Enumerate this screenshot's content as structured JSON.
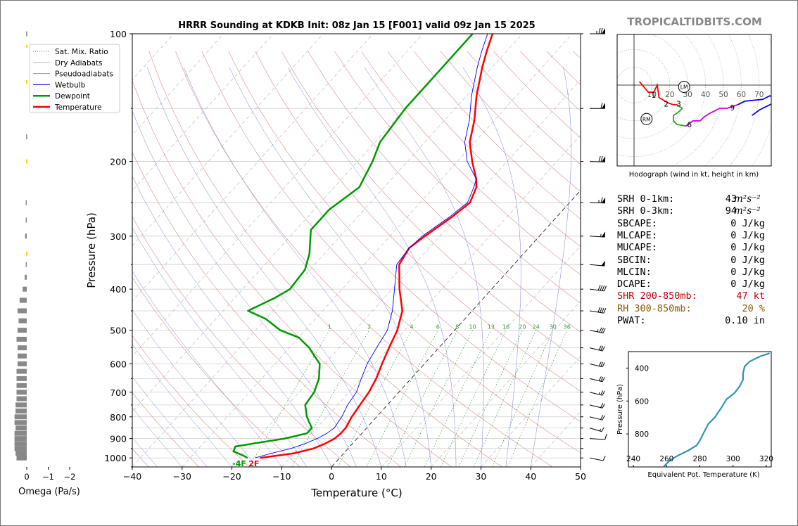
{
  "chart_data": [
    {
      "type": "skew-t",
      "title": "HRRR Sounding at KDKB Init: 08z Jan 15 [F001] valid 09z Jan 15 2025",
      "xlabel": "Temperature (°C)",
      "ylabel": "Pressure (hPa)",
      "xlim": [
        -40,
        50
      ],
      "ylim": [
        1050,
        100
      ],
      "y_scale": "log",
      "x_ticks": [
        "−40",
        "−30",
        "−20",
        "−10",
        "0",
        "10",
        "20",
        "30",
        "40",
        "50"
      ],
      "y_ticks": [
        "100",
        "200",
        "300",
        "400",
        "500",
        "600",
        "700",
        "800",
        "900",
        "1000"
      ],
      "grid": true,
      "legend_position": "top-left",
      "legend": [
        {
          "label": "Sat. Mix. Ratio",
          "color": "#2ca02c",
          "style": "dotted"
        },
        {
          "label": "Dry Adiabats",
          "color": "#bbbbbb",
          "style": "solid"
        },
        {
          "label": "Pseudoadiabats",
          "color": "#999999",
          "style": "solid"
        },
        {
          "label": "Wetbulb",
          "color": "#0000ff",
          "style": "solid"
        },
        {
          "label": "Dewpoint",
          "color": "#009900",
          "style": "solid"
        },
        {
          "label": "Temperature",
          "color": "#ff0000",
          "style": "solid"
        }
      ],
      "mixing_ratio_labels": [
        "1",
        "2",
        "4",
        "6",
        "8",
        "10",
        "13",
        "16",
        "20",
        "24",
        "30",
        "36"
      ],
      "surface_labels": {
        "dewpoint": "-4F",
        "temperature": "2F"
      },
      "series": [
        {
          "name": "Temperature",
          "points": [
            [
              1000,
              -16
            ],
            [
              975,
              -10
            ],
            [
              950,
              -7
            ],
            [
              925,
              -5.5
            ],
            [
              900,
              -4.5
            ],
            [
              875,
              -4.2
            ],
            [
              850,
              -4.2
            ],
            [
              800,
              -5
            ],
            [
              750,
              -5.5
            ],
            [
              700,
              -6
            ],
            [
              650,
              -7
            ],
            [
              600,
              -8.5
            ],
            [
              550,
              -10
            ],
            [
              500,
              -11.5
            ],
            [
              450,
              -14
            ],
            [
              400,
              -18.5
            ],
            [
              350,
              -23
            ],
            [
              320,
              -24
            ],
            [
              300,
              -23
            ],
            [
              270,
              -21
            ],
            [
              250,
              -20
            ],
            [
              230,
              -21.5
            ],
            [
              220,
              -23
            ],
            [
              200,
              -27
            ],
            [
              180,
              -31
            ],
            [
              160,
              -34
            ],
            [
              140,
              -38
            ],
            [
              120,
              -42
            ],
            [
              110,
              -44
            ],
            [
              100,
              -46
            ]
          ]
        },
        {
          "name": "Wetbulb",
          "points": [
            [
              1000,
              -17
            ],
            [
              975,
              -14.5
            ],
            [
              950,
              -11.5
            ],
            [
              925,
              -9.5
            ],
            [
              900,
              -8
            ],
            [
              875,
              -7
            ],
            [
              850,
              -6.5
            ],
            [
              800,
              -7
            ],
            [
              750,
              -8
            ],
            [
              700,
              -8.5
            ],
            [
              650,
              -10
            ],
            [
              600,
              -11.5
            ],
            [
              550,
              -12.5
            ],
            [
              500,
              -13.5
            ],
            [
              450,
              -16
            ],
            [
              400,
              -19.5
            ],
            [
              350,
              -23.5
            ],
            [
              320,
              -24
            ],
            [
              300,
              -23.5
            ],
            [
              270,
              -21.5
            ],
            [
              250,
              -20.5
            ],
            [
              230,
              -22
            ],
            [
              220,
              -23
            ],
            [
              200,
              -28
            ],
            [
              180,
              -32
            ],
            [
              160,
              -35
            ],
            [
              140,
              -39
            ],
            [
              120,
              -43
            ],
            [
              110,
              -45
            ],
            [
              100,
              -47
            ]
          ]
        },
        {
          "name": "Dewpoint",
          "points": [
            [
              1000,
              -18.5
            ],
            [
              985,
              -20
            ],
            [
              965,
              -22.5
            ],
            [
              940,
              -23
            ],
            [
              925,
              -20
            ],
            [
              900,
              -14.5
            ],
            [
              875,
              -11
            ],
            [
              850,
              -11
            ],
            [
              800,
              -14
            ],
            [
              750,
              -16.5
            ],
            [
              700,
              -17
            ],
            [
              650,
              -18.5
            ],
            [
              600,
              -21
            ],
            [
              570,
              -24
            ],
            [
              550,
              -26
            ],
            [
              520,
              -30
            ],
            [
              500,
              -35
            ],
            [
              470,
              -40
            ],
            [
              450,
              -45
            ],
            [
              420,
              -42
            ],
            [
              400,
              -40.5
            ],
            [
              360,
              -41
            ],
            [
              330,
              -43
            ],
            [
              290,
              -47
            ],
            [
              260,
              -47
            ],
            [
              230,
              -45
            ],
            [
              200,
              -47
            ],
            [
              180,
              -49
            ],
            [
              150,
              -50
            ],
            [
              120,
              -50
            ],
            [
              100,
              -50
            ]
          ]
        }
      ]
    },
    {
      "type": "line",
      "title": "",
      "xlabel": "",
      "ylabel": "",
      "caption": "Hodograph (wind in kt, height in km)",
      "xlim": [
        -25,
        85
      ],
      "ylim": [
        -45,
        30
      ],
      "ring_labels": [
        "10",
        "20",
        "30",
        "40",
        "50",
        "60",
        "70"
      ],
      "markers": [
        {
          "label": "LM",
          "x": 28,
          "y": -1
        },
        {
          "label": "RM",
          "x": 7,
          "y": -19
        }
      ],
      "height_labels": [
        "1",
        "2",
        "3",
        "6",
        "9"
      ],
      "segments": [
        {
          "color": "#ff0000",
          "points": [
            [
              3,
              2
            ],
            [
              8,
              -4
            ],
            [
              11,
              -4
            ],
            [
              13,
              0
            ],
            [
              14,
              -7
            ],
            [
              19,
              -10
            ],
            [
              22,
              -11
            ],
            [
              24,
              -11
            ]
          ]
        },
        {
          "color": "#2ca02c",
          "points": [
            [
              24,
              -11
            ],
            [
              27,
              -13
            ],
            [
              25,
              -15
            ],
            [
              22,
              -17
            ],
            [
              22,
              -20
            ],
            [
              24,
              -22
            ],
            [
              29,
              -23
            ]
          ]
        },
        {
          "color": "#cc00cc",
          "points": [
            [
              29,
              -23
            ],
            [
              33,
              -20
            ],
            [
              37,
              -20
            ],
            [
              39,
              -18
            ],
            [
              42,
              -16
            ],
            [
              48,
              -13
            ],
            [
              52,
              -13
            ],
            [
              58,
              -11
            ]
          ]
        },
        {
          "color": "#0000ff",
          "points": [
            [
              58,
              -11
            ],
            [
              62,
              -9
            ],
            [
              72,
              -8
            ],
            [
              76,
              -6
            ],
            [
              80,
              -8
            ],
            [
              78,
              -10
            ],
            [
              72,
              -13
            ],
            [
              70,
              -14
            ],
            [
              66,
              -17
            ]
          ]
        }
      ]
    },
    {
      "type": "line",
      "xlabel": "Equivalent Pot. Temperature (K)",
      "ylabel": "Pressure (hPa)",
      "xlim": [
        237,
        323
      ],
      "ylim": [
        1000,
        300
      ],
      "x_ticks": [
        "240",
        "260",
        "280",
        "300",
        "320"
      ],
      "y_ticks": [
        "400",
        "600",
        "800"
      ],
      "series": [
        {
          "color": "#2f94b4",
          "points": [
            [
              258,
              1000
            ],
            [
              262,
              960
            ],
            [
              267,
              930
            ],
            [
              273,
              900
            ],
            [
              278,
              870
            ],
            [
              280,
              840
            ],
            [
              282,
              800
            ],
            [
              285,
              740
            ],
            [
              289,
              700
            ],
            [
              293,
              640
            ],
            [
              296,
              590
            ],
            [
              301,
              550
            ],
            [
              304,
              510
            ],
            [
              306,
              470
            ],
            [
              306,
              430
            ],
            [
              307,
              390
            ],
            [
              310,
              360
            ],
            [
              316,
              330
            ],
            [
              322,
              310
            ]
          ]
        }
      ]
    },
    {
      "type": "bar",
      "orientation": "horizontal",
      "xlabel": "Omega (Pa/s)",
      "x_ticks": [
        "0",
        "−1",
        "−2"
      ],
      "xlim": [
        0.3,
        -2.8
      ],
      "values_note": "",
      "points": [
        [
          1000,
          0.5
        ],
        [
          975,
          0.55
        ],
        [
          950,
          0.6
        ],
        [
          925,
          0.6
        ],
        [
          900,
          0.6
        ],
        [
          875,
          0.6
        ],
        [
          850,
          0.55
        ],
        [
          825,
          0.6
        ],
        [
          800,
          0.6
        ],
        [
          775,
          0.55
        ],
        [
          750,
          0.55
        ],
        [
          725,
          0.5
        ],
        [
          700,
          0.5
        ],
        [
          675,
          0.5
        ],
        [
          650,
          0.5
        ],
        [
          625,
          0.5
        ],
        [
          600,
          0.45
        ],
        [
          575,
          0.45
        ],
        [
          550,
          0.45
        ],
        [
          525,
          0.5
        ],
        [
          500,
          0.45
        ],
        [
          475,
          0.4
        ],
        [
          450,
          0.45
        ],
        [
          425,
          0.35
        ],
        [
          400,
          0.2
        ],
        [
          375,
          0.1
        ],
        [
          350,
          0.05
        ],
        [
          300,
          0.08
        ],
        [
          275,
          0.05
        ],
        [
          250,
          0.05
        ],
        [
          175,
          0.03
        ],
        [
          100,
          0.03
        ]
      ]
    }
  ],
  "site": {
    "watermark": "TROPICALTIDBITS.COM"
  },
  "stats": [
    {
      "label": "SRH 0-1km:",
      "value": "43",
      "unit": "m²s⁻²",
      "color": "#000000"
    },
    {
      "label": "SRH 0-3km:",
      "value": "94",
      "unit": "m²s⁻²",
      "color": "#000000"
    },
    {
      "label": "SBCAPE:",
      "value": "0 J/kg",
      "unit": "",
      "color": "#000000"
    },
    {
      "label": "MLCAPE:",
      "value": "0 J/kg",
      "unit": "",
      "color": "#000000"
    },
    {
      "label": "MUCAPE:",
      "value": "0 J/kg",
      "unit": "",
      "color": "#000000"
    },
    {
      "label": "SBCIN:",
      "value": "0 J/kg",
      "unit": "",
      "color": "#000000"
    },
    {
      "label": "MLCIN:",
      "value": "0 J/kg",
      "unit": "",
      "color": "#000000"
    },
    {
      "label": "DCAPE:",
      "value": "0 J/kg",
      "unit": "",
      "color": "#000000"
    },
    {
      "label": "SHR 200-850mb:",
      "value": "47 kt",
      "unit": "",
      "color": "#c00000"
    },
    {
      "label": "RH 300-850mb:",
      "value": "20 %",
      "unit": "",
      "color": "#8b5a00"
    },
    {
      "label": "PWAT:",
      "value": "0.10 in",
      "unit": "",
      "color": "#000000"
    }
  ],
  "wind_barbs": [
    {
      "p": 100,
      "speed": 75,
      "dir": 270
    },
    {
      "p": 150,
      "speed": 60,
      "dir": 270
    },
    {
      "p": 200,
      "speed": 70,
      "dir": 265
    },
    {
      "p": 250,
      "speed": 65,
      "dir": 265
    },
    {
      "p": 300,
      "speed": 55,
      "dir": 260
    },
    {
      "p": 350,
      "speed": 50,
      "dir": 255
    },
    {
      "p": 400,
      "speed": 40,
      "dir": 250
    },
    {
      "p": 450,
      "speed": 40,
      "dir": 245
    },
    {
      "p": 500,
      "speed": 35,
      "dir": 240
    },
    {
      "p": 550,
      "speed": 30,
      "dir": 235
    },
    {
      "p": 600,
      "speed": 30,
      "dir": 235
    },
    {
      "p": 650,
      "speed": 30,
      "dir": 235
    },
    {
      "p": 700,
      "speed": 25,
      "dir": 235
    },
    {
      "p": 750,
      "speed": 20,
      "dir": 235
    },
    {
      "p": 800,
      "speed": 20,
      "dir": 235
    },
    {
      "p": 850,
      "speed": 15,
      "dir": 230
    },
    {
      "p": 900,
      "speed": 10,
      "dir": 260
    },
    {
      "p": 1000,
      "speed": 10,
      "dir": 240
    }
  ],
  "omega_flags": [
    {
      "p": 130,
      "color": "#ffd700"
    },
    {
      "p": 200,
      "color": "#ffd700"
    },
    {
      "p": 330,
      "color": "#ffd700"
    }
  ]
}
